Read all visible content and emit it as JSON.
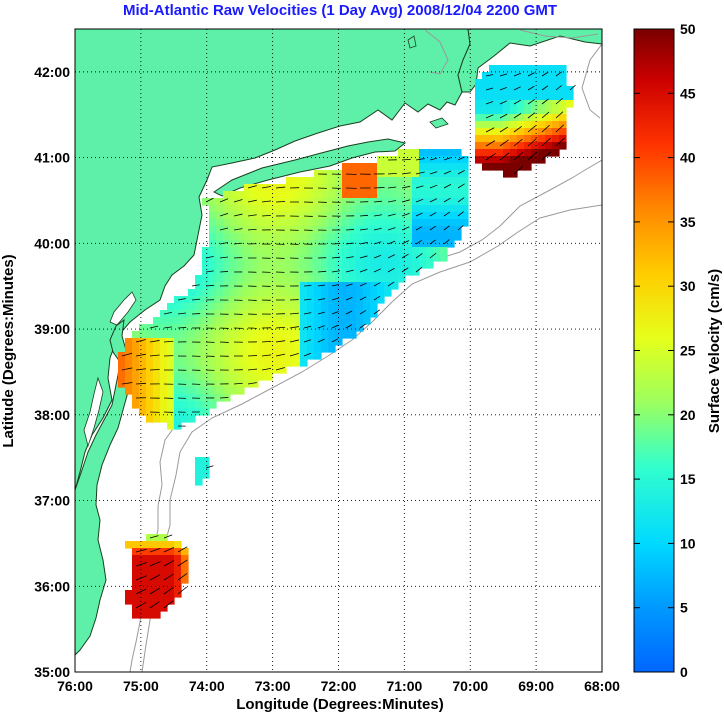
{
  "title": "Mid-Atlantic Raw Velocities (1 Day Avg) 2008/12/04 2200 GMT",
  "map": {
    "xlabel": "Longitude (Degrees:Minutes)",
    "ylabel": "Latitude (Degrees:Minutes)",
    "lon_range": [
      -76,
      -68
    ],
    "lat_range": [
      35,
      42.5
    ],
    "x_ticks": [
      {
        "value": -76,
        "label": "76:00"
      },
      {
        "value": -75,
        "label": "75:00"
      },
      {
        "value": -74,
        "label": "74:00"
      },
      {
        "value": -73,
        "label": "73:00"
      },
      {
        "value": -72,
        "label": "72:00"
      },
      {
        "value": -71,
        "label": "71:00"
      },
      {
        "value": -70,
        "label": "70:00"
      },
      {
        "value": -69,
        "label": "69:00"
      },
      {
        "value": -68,
        "label": "68:00"
      }
    ],
    "y_ticks": [
      {
        "value": 35,
        "label": "35:00"
      },
      {
        "value": 36,
        "label": "36:00"
      },
      {
        "value": 37,
        "label": "37:00"
      },
      {
        "value": 38,
        "label": "38:00"
      },
      {
        "value": 39,
        "label": "39:00"
      },
      {
        "value": 40,
        "label": "40:00"
      },
      {
        "value": 41,
        "label": "41:00"
      },
      {
        "value": 42,
        "label": "42:00"
      }
    ],
    "grid": "dotted",
    "land_color": "#5ef0a8",
    "coast_color": "#1a4020",
    "bathymetry_color": "#9a9a9a"
  },
  "colorbar": {
    "label": "Surface Velocity (cm/s)",
    "min": 0,
    "max": 50,
    "ticks": [
      {
        "value": 0,
        "label": "0"
      },
      {
        "value": 5,
        "label": "5"
      },
      {
        "value": 10,
        "label": "10"
      },
      {
        "value": 15,
        "label": "15"
      },
      {
        "value": 20,
        "label": "20"
      },
      {
        "value": 25,
        "label": "25"
      },
      {
        "value": 30,
        "label": "30"
      },
      {
        "value": 35,
        "label": "35"
      },
      {
        "value": 40,
        "label": "40"
      },
      {
        "value": 45,
        "label": "45"
      },
      {
        "value": 50,
        "label": "50"
      }
    ],
    "colormap": "jet"
  }
}
